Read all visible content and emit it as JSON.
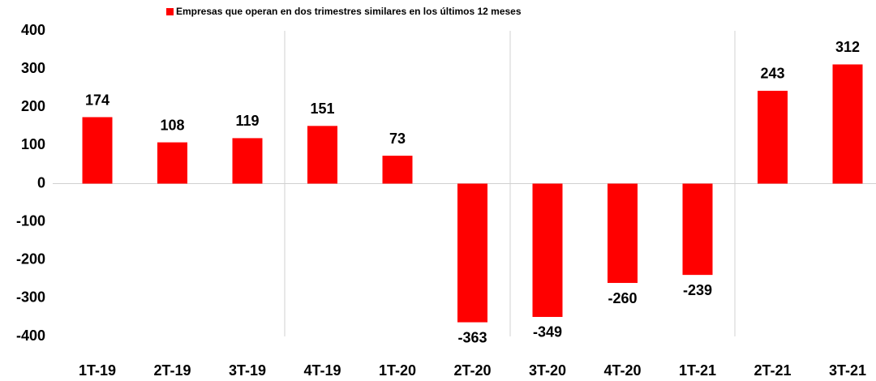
{
  "chart_data": {
    "type": "bar",
    "categories": [
      "1T-19",
      "2T-19",
      "3T-19",
      "4T-19",
      "1T-20",
      "2T-20",
      "3T-20",
      "4T-20",
      "1T-21",
      "2T-21",
      "3T-21"
    ],
    "series": [
      {
        "name": "Empresas que operan en dos trimestres similares en los últimos 12 meses",
        "color": "#ff0000",
        "values": [
          174,
          108,
          119,
          151,
          73,
          -363,
          -349,
          -260,
          -239,
          243,
          312
        ]
      }
    ],
    "ylim": [
      -400,
      400
    ],
    "yticks": [
      -400,
      -300,
      -200,
      -100,
      0,
      100,
      200,
      300,
      400
    ],
    "grid": false,
    "legend": "top"
  }
}
